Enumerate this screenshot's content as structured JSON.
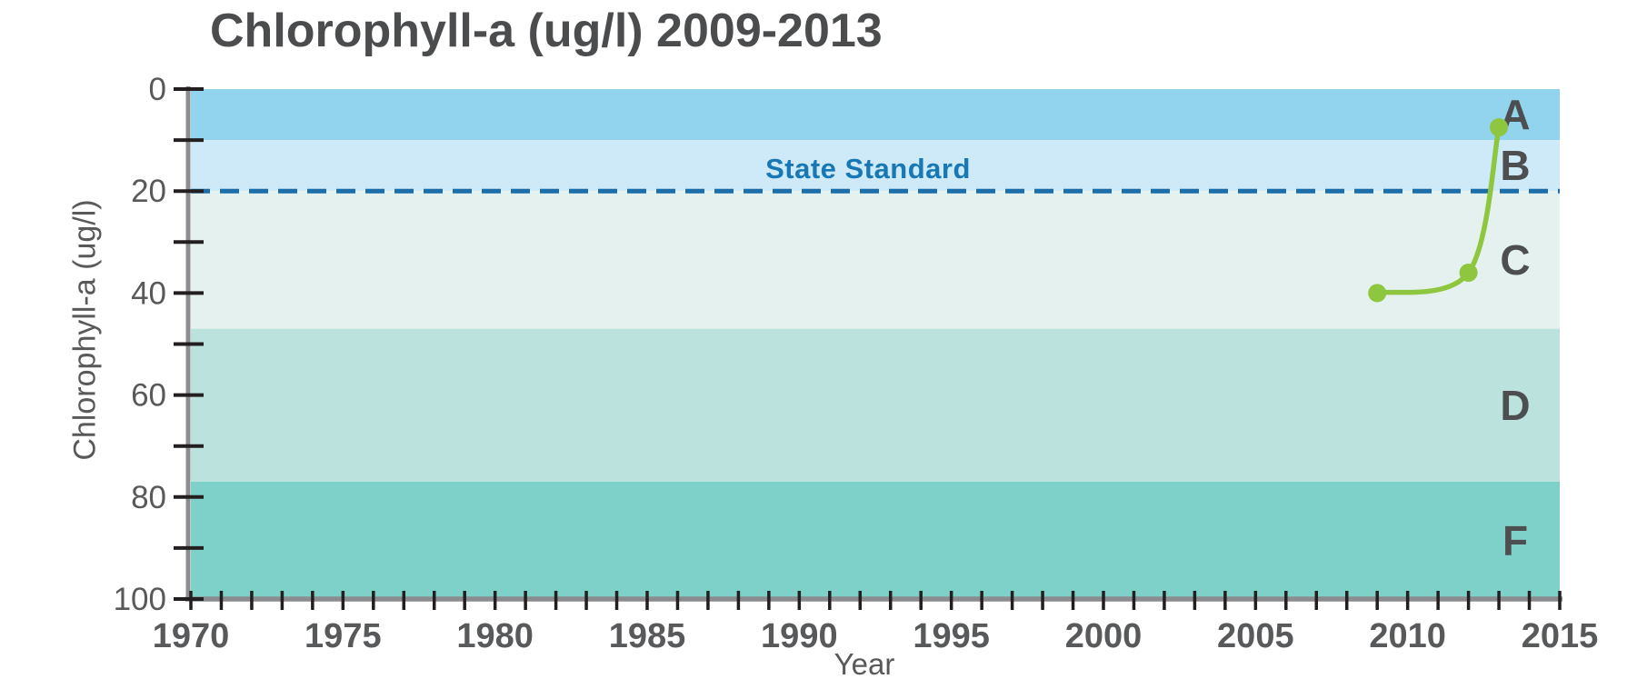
{
  "title": "Chlorophyll-a (ug/l) 2009-2013",
  "chart_data": {
    "type": "line",
    "title": "Chlorophyll-a (ug/l) 2009-2013",
    "xlabel": "Year",
    "ylabel": "Chlorophyll-a (ug/l)",
    "x_range": [
      1970,
      2015
    ],
    "x_major_ticks": [
      1970,
      1975,
      1980,
      1985,
      1990,
      1995,
      2000,
      2005,
      2010,
      2015
    ],
    "x_minor_tick_step_years": 1,
    "y_range": [
      0,
      100
    ],
    "y_axis_inverted": true,
    "y_major_ticks": [
      0,
      20,
      40,
      60,
      80,
      100
    ],
    "y_minor_ticks": [
      10,
      30,
      50,
      70,
      90
    ],
    "grid": false,
    "legend": false,
    "series": [
      {
        "name": "Chlorophyll-a",
        "color": "#8ec63f",
        "marker_radius": 10,
        "line_width": 5.5,
        "points": [
          {
            "year": 2009,
            "value": 40
          },
          {
            "year": 2012,
            "value": 36
          },
          {
            "year": 2013,
            "value": 7.5
          }
        ]
      }
    ],
    "reference_line": {
      "label": "State Standard",
      "value": 20,
      "style": "dashed",
      "line_color": "#1c6ea9",
      "label_color": "#1878b5"
    },
    "grade_bands": [
      {
        "label": "A",
        "from": 0,
        "to": 10,
        "color": "#92d3ee"
      },
      {
        "label": "B",
        "from": 10,
        "to": 20,
        "color": "#cee9f7"
      },
      {
        "label": "C",
        "from": 20,
        "to": 47,
        "color": "#e5f1ee"
      },
      {
        "label": "D",
        "from": 47,
        "to": 77,
        "color": "#bce2dd"
      },
      {
        "label": "F",
        "from": 77,
        "to": 100,
        "color": "#7ed1c9"
      }
    ],
    "band_label_color": "#4d4e50",
    "axis_color": "#8a8c8f",
    "tick_color": "#231f20",
    "tick_label_color": "#58595b",
    "title_color": "#4b4c4e"
  }
}
